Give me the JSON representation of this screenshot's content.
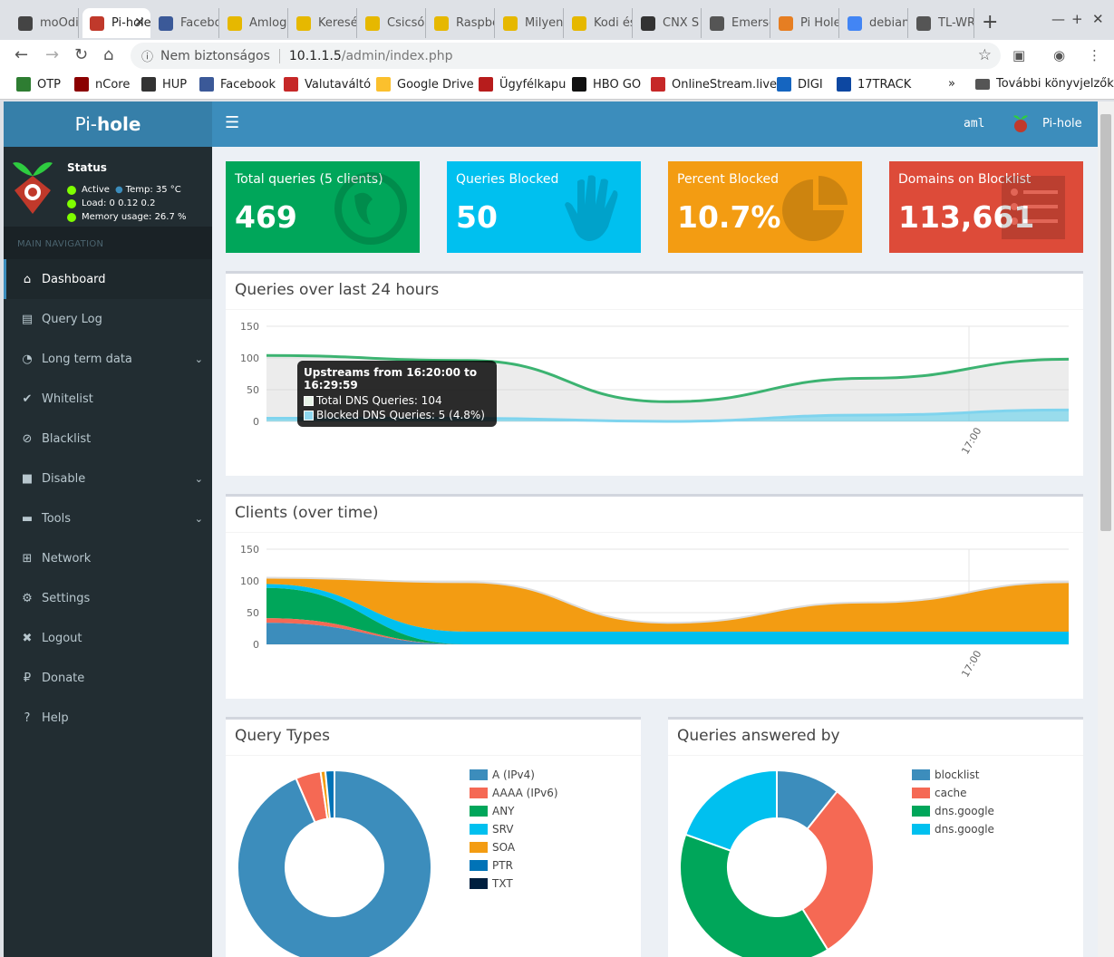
{
  "browser": {
    "tabs": [
      {
        "title": "moOdi",
        "color": "#444"
      },
      {
        "title": "Pi-hole",
        "color": "#c0392b"
      },
      {
        "title": "Facebook",
        "color": "#3b5998"
      },
      {
        "title": "Amlogic",
        "color": "#e6b800"
      },
      {
        "title": "Keresés",
        "color": "#e6b800"
      },
      {
        "title": "Csicsóka",
        "color": "#e6b800"
      },
      {
        "title": "Raspberry",
        "color": "#e6b800"
      },
      {
        "title": "Milyen",
        "color": "#e6b800"
      },
      {
        "title": "Kodi és",
        "color": "#e6b800"
      },
      {
        "title": "CNX S",
        "color": "#333"
      },
      {
        "title": "Emerson",
        "color": "#555"
      },
      {
        "title": "Pi Hole",
        "color": "#e67e22"
      },
      {
        "title": "debian",
        "color": "#4285f4"
      },
      {
        "title": "TL-WR",
        "color": "#555"
      }
    ],
    "address": {
      "security": "Nem biztonságos",
      "host": "10.1.1.5",
      "path": "/admin/index.php"
    },
    "bookmarks": [
      {
        "label": "OTP",
        "color": "#2e7d32"
      },
      {
        "label": "nCore",
        "color": "#8b0000"
      },
      {
        "label": "HUP",
        "color": "#333"
      },
      {
        "label": "Facebook",
        "color": "#3b5998"
      },
      {
        "label": "Valutaváltó",
        "color": "#c62828"
      },
      {
        "label": "Google Drive",
        "color": "#fbc02d"
      },
      {
        "label": "Ügyfélkapu",
        "color": "#b71c1c"
      },
      {
        "label": "HBO GO",
        "color": "#111"
      },
      {
        "label": "OnlineStream.live",
        "color": "#c62828"
      },
      {
        "label": "DIGI",
        "color": "#1565c0"
      },
      {
        "label": "17TRACK",
        "color": "#0d47a1"
      }
    ],
    "bookmarks_more": "»",
    "other_bookmarks": "További könyvjelzők"
  },
  "app": {
    "logo": {
      "pre": "Pi-",
      "bold": "hole"
    },
    "user": "aml",
    "hostname": "Pi-hole",
    "status": {
      "title": "Status",
      "active": "Active",
      "temp": "Temp: 35 °C",
      "load": "Load:  0  0.12  0.2",
      "memory": "Memory usage:  26.7 %"
    },
    "nav_header": "MAIN NAVIGATION",
    "nav": [
      {
        "label": "Dashboard",
        "icon": "home-icon"
      },
      {
        "label": "Query Log",
        "icon": "file-icon"
      },
      {
        "label": "Long term data",
        "icon": "history-icon"
      },
      {
        "label": "Whitelist",
        "icon": "check-circle-icon"
      },
      {
        "label": "Blacklist",
        "icon": "ban-icon"
      },
      {
        "label": "Disable",
        "icon": "stop-icon"
      },
      {
        "label": "Tools",
        "icon": "folder-icon"
      },
      {
        "label": "Network",
        "icon": "network-icon"
      },
      {
        "label": "Settings",
        "icon": "cogs-icon"
      },
      {
        "label": "Logout",
        "icon": "user-times-icon"
      },
      {
        "label": "Donate",
        "icon": "paypal-icon"
      },
      {
        "label": "Help",
        "icon": "question-circle-icon"
      }
    ]
  },
  "stats": [
    {
      "label": "Total queries (5 clients)",
      "value": "469",
      "color": "#00a65a",
      "icon": "globe-icon"
    },
    {
      "label": "Queries Blocked",
      "value": "50",
      "color": "#00c0ef",
      "icon": "hand-icon"
    },
    {
      "label": "Percent Blocked",
      "value": "10.7%",
      "color": "#f39c12",
      "icon": "pie-chart-icon"
    },
    {
      "label": "Domains on Blocklist",
      "value": "113,661",
      "color": "#dd4b39",
      "icon": "list-icon"
    }
  ],
  "panels": {
    "queries_title": "Queries over last 24 hours",
    "clients_title": "Clients (over time)",
    "types_title": "Query Types",
    "answered_title": "Queries answered by"
  },
  "tooltip": {
    "title": "Upstreams from 16:20:00 to 16:29:59",
    "total": "Total DNS Queries: 104",
    "blocked": "Blocked DNS Queries: 5 (4.8%)"
  },
  "chart_data": [
    {
      "type": "area",
      "title": "Queries over last 24 hours",
      "x_tick_labels": [
        "17:00"
      ],
      "ylim": [
        0,
        150
      ],
      "yticks": [
        0,
        50,
        100,
        150
      ],
      "series": [
        {
          "name": "Total DNS Queries",
          "color": "#00a65a",
          "values": [
            104,
            96,
            31,
            68,
            98
          ]
        },
        {
          "name": "Blocked DNS Queries",
          "color": "#00c0ef",
          "values": [
            5,
            5,
            0,
            10,
            18
          ]
        }
      ]
    },
    {
      "type": "area",
      "title": "Clients (over time)",
      "x_tick_labels": [
        "17:00"
      ],
      "ylim": [
        0,
        150
      ],
      "yticks": [
        0,
        50,
        100,
        150
      ],
      "series": [
        {
          "color": "#3c8dbc",
          "values": [
            34,
            0,
            0,
            0,
            0
          ]
        },
        {
          "color": "#f56954",
          "values": [
            7,
            0,
            0,
            0,
            0
          ]
        },
        {
          "color": "#00a65a",
          "values": [
            48,
            0,
            0,
            0,
            0
          ]
        },
        {
          "color": "#00c0ef",
          "values": [
            6,
            20,
            20,
            20,
            20
          ]
        },
        {
          "color": "#f39c12",
          "values": [
            10,
            78,
            14,
            46,
            78
          ]
        }
      ]
    },
    {
      "type": "pie",
      "title": "Query Types",
      "categories": [
        "A (IPv4)",
        "AAAA (IPv6)",
        "ANY",
        "SRV",
        "SOA",
        "PTR",
        "TXT"
      ],
      "colors": [
        "#3c8dbc",
        "#f56954",
        "#00a65a",
        "#00c0ef",
        "#f39c12",
        "#0073b7",
        "#001f3f"
      ],
      "values": [
        93.5,
        4.2,
        0,
        0,
        0.8,
        1.5,
        0
      ]
    },
    {
      "type": "pie",
      "title": "Queries answered by",
      "categories": [
        "blocklist",
        "cache",
        "dns.google",
        "dns.google"
      ],
      "colors": [
        "#3c8dbc",
        "#f56954",
        "#00a65a",
        "#00c0ef"
      ],
      "values": [
        10.7,
        30.5,
        39.3,
        19.5
      ]
    }
  ]
}
